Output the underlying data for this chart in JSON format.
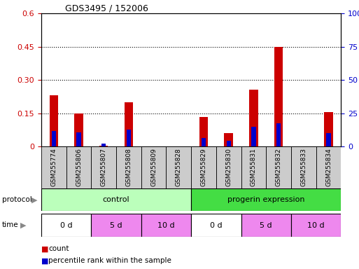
{
  "title": "GDS3495 / 152006",
  "samples": [
    "GSM255774",
    "GSM255806",
    "GSM255807",
    "GSM255808",
    "GSM255809",
    "GSM255828",
    "GSM255829",
    "GSM255830",
    "GSM255831",
    "GSM255832",
    "GSM255833",
    "GSM255834"
  ],
  "count_values": [
    0.23,
    0.15,
    0.005,
    0.2,
    0.0,
    0.0,
    0.135,
    0.06,
    0.255,
    0.45,
    0.0,
    0.155
  ],
  "percentile_values_scaled": [
    0.07,
    0.065,
    0.015,
    0.077,
    0.0,
    0.0,
    0.04,
    0.027,
    0.09,
    0.105,
    0.0,
    0.06
  ],
  "left_ylim": [
    0,
    0.6
  ],
  "right_ylim": [
    0,
    100
  ],
  "left_yticks": [
    0,
    0.15,
    0.3,
    0.45,
    0.6
  ],
  "right_yticks": [
    0,
    25,
    50,
    75,
    100
  ],
  "left_ytick_labels": [
    "0",
    "0.15",
    "0.30",
    "0.45",
    "0.6"
  ],
  "right_ytick_labels": [
    "0",
    "25",
    "50",
    "75",
    "100%"
  ],
  "bar_color": "#cc0000",
  "percentile_color": "#0000cc",
  "tick_label_color_left": "#cc0000",
  "tick_label_color_right": "#0000cc",
  "bar_width": 0.35,
  "blue_bar_width": 0.18,
  "protocol_control_color": "#bbffbb",
  "protocol_progerin_color": "#44dd44",
  "time_white_color": "#ffffff",
  "time_pink_color": "#ee88ee",
  "gray_label_bg": "#cccccc"
}
